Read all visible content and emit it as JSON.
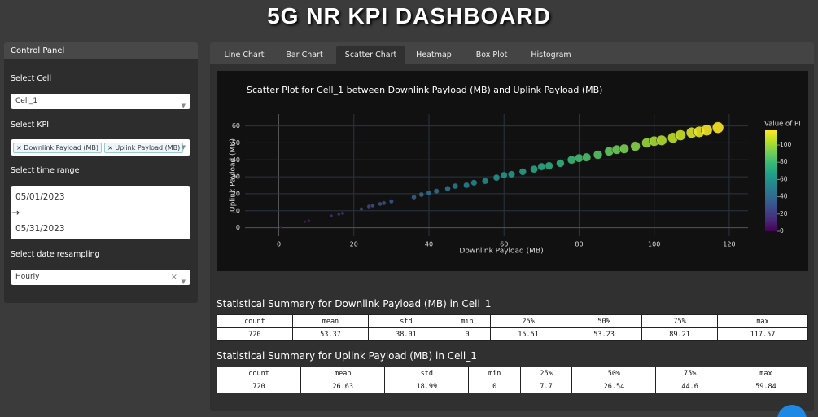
{
  "header": {
    "title": "5G NR KPI DASHBOARD"
  },
  "control_panel": {
    "title": "Control Panel",
    "cell_label": "Select Cell",
    "cell": "Cell_1",
    "kpi_label": "Select KPI",
    "kpis": [
      "Downlink Payload (MB)",
      "Uplink Payload (MB)"
    ],
    "time_label": "Select time range",
    "start_date": "05/01/2023",
    "end_date": "05/31/2023",
    "resampling_label": "Select date resampling",
    "resampling": "Hourly"
  },
  "tabs": [
    "Line Chart",
    "Bar Chart",
    "Scatter Chart",
    "Heatmap",
    "Box Plot",
    "Histogram"
  ],
  "active_tab": 2,
  "chart_data": {
    "type": "scatter",
    "title": "Scatter Plot for Cell_1 between Downlink Payload (MB) and Uplink Payload (MB)",
    "x_label": "Downlink Payload (MB)",
    "y_label": "Uplink Payload (MB)",
    "colorbar_title": "Value of PI",
    "x": [
      0.5,
      7,
      8,
      14,
      16,
      17,
      22,
      24,
      25,
      27,
      28,
      30,
      36,
      38,
      40,
      42,
      45,
      47,
      50,
      52,
      55,
      58,
      60,
      62,
      65,
      68,
      70,
      72,
      75,
      78,
      80,
      82,
      85,
      88,
      90,
      92,
      95,
      98,
      100,
      102,
      105,
      107,
      110,
      112,
      114,
      117
    ],
    "values": [
      0.3,
      3.5,
      4.2,
      7,
      8,
      8.5,
      11,
      12.5,
      13,
      14,
      14.5,
      15.5,
      18,
      19.5,
      20.5,
      21.5,
      23,
      24.5,
      25,
      26.5,
      27.5,
      29.5,
      31,
      31.5,
      33,
      34.5,
      36,
      36.5,
      38,
      40,
      41,
      41.5,
      43,
      45,
      46,
      46.5,
      48,
      50,
      51,
      51.5,
      53,
      54.5,
      56,
      56.5,
      57.5,
      59
    ],
    "pi_values": [
      1,
      8,
      9,
      15,
      17,
      18,
      23,
      25,
      26,
      28,
      29,
      31,
      37,
      39,
      41,
      43,
      46,
      48,
      51,
      53,
      56,
      59,
      61,
      63,
      66,
      69,
      71,
      73,
      76,
      79,
      81,
      83,
      86,
      89,
      91,
      93,
      96,
      99,
      101,
      103,
      106,
      108,
      111,
      113,
      115,
      117
    ],
    "xlim": [
      -9,
      125
    ],
    "xticks": [
      0,
      20,
      40,
      60,
      80,
      100,
      120
    ],
    "ylim": [
      -5,
      67
    ],
    "yticks": [
      0,
      10,
      20,
      30,
      40,
      50,
      60
    ],
    "colorbar_lim": [
      0,
      117
    ],
    "colorbar_ticks": [
      0,
      20,
      40,
      60,
      80,
      100
    ],
    "colorscale": [
      "#440154",
      "#482878",
      "#3e4989",
      "#31688e",
      "#26828e",
      "#1f9e89",
      "#35b779",
      "#6ece58",
      "#b5de2b",
      "#fde725"
    ],
    "grid": true
  },
  "stats": [
    {
      "title": "Statistical Summary for Downlink Payload (MB) in Cell_1",
      "columns": [
        "count",
        "mean",
        "std",
        "min",
        "25%",
        "50%",
        "75%",
        "max"
      ],
      "values": [
        720,
        53.37,
        38.01,
        0,
        15.51,
        53.23,
        89.21,
        117.57
      ]
    },
    {
      "title": "Statistical Summary for Uplink Payload (MB) in Cell_1",
      "columns": [
        "count",
        "mean",
        "std",
        "min",
        "25%",
        "50%",
        "75%",
        "max"
      ],
      "values": [
        720,
        26.63,
        18.99,
        0,
        7.7,
        26.54,
        44.6,
        59.84
      ]
    }
  ]
}
